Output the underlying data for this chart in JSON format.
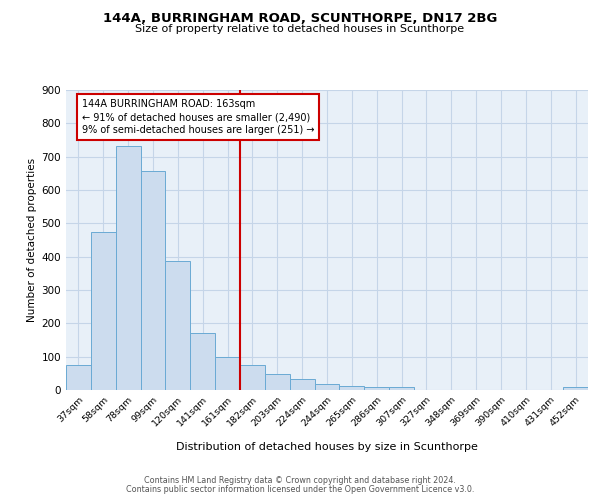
{
  "title": "144A, BURRINGHAM ROAD, SCUNTHORPE, DN17 2BG",
  "subtitle": "Size of property relative to detached houses in Scunthorpe",
  "xlabel": "Distribution of detached houses by size in Scunthorpe",
  "ylabel": "Number of detached properties",
  "bar_labels": [
    "37sqm",
    "58sqm",
    "78sqm",
    "99sqm",
    "120sqm",
    "141sqm",
    "161sqm",
    "182sqm",
    "203sqm",
    "224sqm",
    "244sqm",
    "265sqm",
    "286sqm",
    "307sqm",
    "327sqm",
    "348sqm",
    "369sqm",
    "390sqm",
    "410sqm",
    "431sqm",
    "452sqm"
  ],
  "bar_values": [
    75,
    475,
    733,
    657,
    388,
    172,
    99,
    75,
    47,
    34,
    17,
    11,
    9,
    8,
    0,
    0,
    0,
    0,
    0,
    0,
    8
  ],
  "bar_color": "#ccdcee",
  "bar_edge_color": "#6aaad4",
  "vline_x": 6.5,
  "vline_color": "#cc0000",
  "annotation_text": "144A BURRINGHAM ROAD: 163sqm\n← 91% of detached houses are smaller (2,490)\n9% of semi-detached houses are larger (251) →",
  "annotation_box_color": "#cc0000",
  "ylim": [
    0,
    900
  ],
  "yticks": [
    0,
    100,
    200,
    300,
    400,
    500,
    600,
    700,
    800,
    900
  ],
  "grid_color": "#c5d5e8",
  "bg_color": "#e8f0f8",
  "footer_line1": "Contains HM Land Registry data © Crown copyright and database right 2024.",
  "footer_line2": "Contains public sector information licensed under the Open Government Licence v3.0."
}
